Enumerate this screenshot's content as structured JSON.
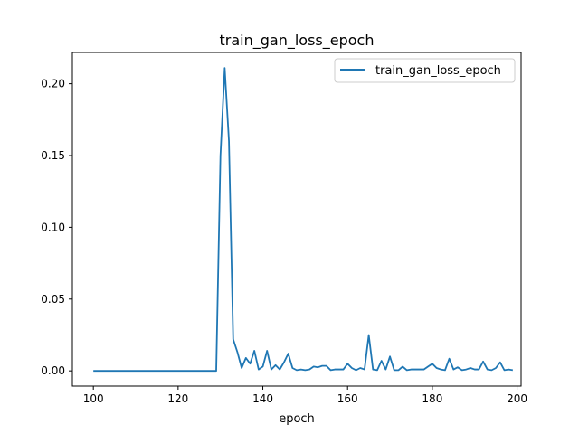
{
  "chart_data": {
    "type": "line",
    "title": "train_gan_loss_epoch",
    "xlabel": "epoch",
    "ylabel": "",
    "xlim": [
      95.05,
      200.95
    ],
    "ylim": [
      -0.0106,
      0.2218
    ],
    "x_ticks": [
      100,
      120,
      140,
      160,
      180,
      200
    ],
    "y_ticks": [
      0.0,
      0.05,
      0.1,
      0.15,
      0.2
    ],
    "y_tick_labels": [
      "0.00",
      "0.05",
      "0.10",
      "0.15",
      "0.20"
    ],
    "grid": false,
    "legend": {
      "position": "top-right",
      "entries": [
        "train_gan_loss_epoch"
      ]
    },
    "series": [
      {
        "name": "train_gan_loss_epoch",
        "color": "#1f77b4",
        "x": [
          100,
          101,
          102,
          103,
          104,
          105,
          106,
          107,
          108,
          109,
          110,
          111,
          112,
          113,
          114,
          115,
          116,
          117,
          118,
          119,
          120,
          121,
          122,
          123,
          124,
          125,
          126,
          127,
          128,
          129,
          130,
          131,
          132,
          133,
          134,
          135,
          136,
          137,
          138,
          139,
          140,
          141,
          142,
          143,
          144,
          145,
          146,
          147,
          148,
          149,
          150,
          151,
          152,
          153,
          154,
          155,
          156,
          157,
          158,
          159,
          160,
          161,
          162,
          163,
          164,
          165,
          166,
          167,
          168,
          169,
          170,
          171,
          172,
          173,
          174,
          175,
          176,
          177,
          178,
          179,
          180,
          181,
          182,
          183,
          184,
          185,
          186,
          187,
          188,
          189,
          190,
          191,
          192,
          193,
          194,
          195,
          196,
          197,
          198,
          199
        ],
        "y": [
          0,
          0,
          0,
          0,
          0,
          0,
          0,
          0,
          0,
          0,
          0,
          0,
          0,
          0,
          0,
          0,
          0,
          0,
          0,
          0,
          0,
          0,
          0,
          0,
          0,
          0,
          0,
          0,
          0,
          0,
          0.15,
          0.211,
          0.16,
          0.022,
          0.013,
          0.002,
          0.009,
          0.005,
          0.014,
          0.001,
          0.003,
          0.014,
          0.001,
          0.004,
          0.001,
          0.006,
          0.012,
          0.002,
          0.0005,
          0.001,
          0.0005,
          0.001,
          0.003,
          0.0025,
          0.0035,
          0.0035,
          0.0005,
          0.001,
          0.001,
          0.001,
          0.005,
          0.002,
          0.0005,
          0.002,
          0.001,
          0.025,
          0.001,
          0.0005,
          0.007,
          0.001,
          0.01,
          0.0005,
          0.0005,
          0.003,
          0.0005,
          0.001,
          0.001,
          0.001,
          0.001,
          0.003,
          0.005,
          0.002,
          0.001,
          0.0005,
          0.0085,
          0.001,
          0.0025,
          0.0005,
          0.001,
          0.002,
          0.001,
          0.001,
          0.0065,
          0.001,
          0.0005,
          0.002,
          0.006,
          0.0005,
          0.001,
          0.0005
        ]
      }
    ]
  }
}
